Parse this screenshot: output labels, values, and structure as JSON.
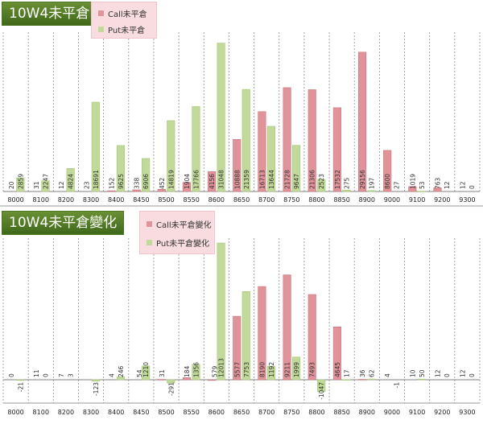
{
  "colors": {
    "call": "#e0949a",
    "put": "#c1da99",
    "call_edge": "#c9737b",
    "put_edge": "#a6c577"
  },
  "chart_data": [
    {
      "type": "bar",
      "title": "10W4未平倉",
      "categories": [
        "8000",
        "8100",
        "8200",
        "8300",
        "8400",
        "8450",
        "8500",
        "8550",
        "8600",
        "8650",
        "8700",
        "8750",
        "8800",
        "8850",
        "8900",
        "9000",
        "9100",
        "9200",
        "9300"
      ],
      "series": [
        {
          "name": "Call未平倉",
          "values": [
            20,
            31,
            12,
            23,
            152,
            338,
            452,
            1904,
            4156,
            10888,
            16713,
            21728,
            21306,
            17532,
            29156,
            8600,
            1019,
            763,
            12
          ]
        },
        {
          "name": "Put未平倉",
          "values": [
            2859,
            2247,
            4824,
            18691,
            9625,
            6906,
            14819,
            17766,
            31048,
            21359,
            13644,
            9647,
            2523,
            275,
            197,
            27,
            53,
            12,
            0
          ]
        }
      ],
      "value_labels": {
        "call": [
          "20",
          "31",
          "12",
          "23",
          "152",
          "338",
          "452",
          "1904",
          "4156",
          "10888",
          "16713",
          "21728",
          "21306",
          "17532",
          "29156",
          "8600",
          "1019",
          "763",
          "12"
        ],
        "put": [
          "2859",
          "2247",
          "4824",
          "18691",
          "9625",
          "6906",
          "14819",
          "17766",
          "31048",
          "21359",
          "13644",
          "9647",
          "2523",
          "275",
          "197",
          "27",
          "53",
          "12",
          "0"
        ]
      },
      "ylim": [
        0,
        33000
      ],
      "grid": true,
      "legend_position": "top"
    },
    {
      "type": "bar",
      "title": "10W4未平倉變化",
      "categories": [
        "8000",
        "8100",
        "8200",
        "8300",
        "8400",
        "8450",
        "8500",
        "8550",
        "8600",
        "8650",
        "8700",
        "8750",
        "8800",
        "8850",
        "8900",
        "9000",
        "9100",
        "9200",
        "9300"
      ],
      "series": [
        {
          "name": "Call未平倉變化",
          "values": [
            0,
            11,
            7,
            0,
            4,
            -10,
            31,
            184,
            -40,
            5577,
            8190,
            9211,
            7493,
            4645,
            36,
            4,
            10,
            12,
            12
          ]
        },
        {
          "name": "Put未平倉變化",
          "values": [
            -21,
            0,
            3,
            -123,
            246,
            1210,
            -291,
            1356,
            12013,
            7753,
            1192,
            1999,
            -1047,
            17,
            62,
            -1,
            50,
            0,
            0
          ]
        }
      ],
      "value_labels": {
        "call": [
          "0",
          "11",
          "7",
          "",
          "4",
          "",
          "31",
          "184",
          "",
          "5577",
          "8190",
          "9211",
          "7493",
          "4645",
          "36",
          "4",
          "10",
          "12",
          "12"
        ],
        "put": [
          "-21",
          "0",
          "3",
          "-123",
          "246",
          "1210",
          "-291",
          "1356",
          "12013",
          "7753",
          "1192",
          "1999",
          "-1047",
          "17",
          "62",
          "-1",
          "50",
          "0",
          "0"
        ]
      },
      "extra_labels": {
        "8450": "54",
        "8600": "579"
      },
      "ylim": [
        -1300,
        12300
      ],
      "grid": true,
      "legend_position": "top"
    }
  ]
}
